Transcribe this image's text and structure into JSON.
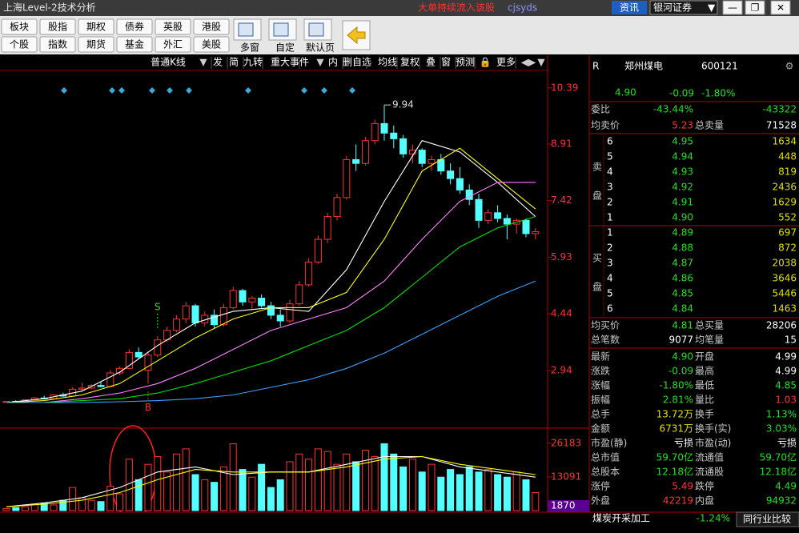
{
  "title_bar": {
    "title": "上海Level-2技术分析",
    "alert": "大单持续流入该股",
    "user": "cjsyds",
    "news": "资讯",
    "broker": "银河证券"
  },
  "toolbar": {
    "row1": [
      "板块",
      "股指",
      "期权",
      "债券",
      "英股",
      "港股"
    ],
    "row2": [
      "个股",
      "指数",
      "期货",
      "基金",
      "外汇",
      "美股"
    ],
    "icons": [
      "多窗",
      "自定",
      "默认页"
    ]
  },
  "chart_toolbar": [
    "普通K线",
    "发",
    "简",
    "九转",
    "重大事件",
    "内",
    "删自选",
    "均线",
    "复权",
    "叠",
    "窗",
    "预测",
    "更多"
  ],
  "chart_data": {
    "type": "candlestick",
    "candles": {
      "open": [
        2.1,
        2.13,
        2.12,
        2.17,
        2.22,
        2.2,
        2.3,
        2.27,
        2.45,
        2.48,
        2.55,
        2.52,
        2.88,
        3.0,
        3.42,
        2.95,
        3.35,
        3.75,
        4.0,
        4.3,
        4.65,
        4.2,
        4.4,
        4.15,
        4.6,
        5.05,
        4.75,
        4.85,
        4.65,
        4.4,
        4.25,
        4.7,
        5.2,
        5.8,
        6.4,
        7.0,
        7.5,
        8.5,
        8.4,
        9.0,
        9.45,
        9.2,
        9.05,
        8.65,
        8.75,
        8.4,
        8.5,
        8.2,
        8.0,
        7.7,
        7.45,
        6.9,
        7.1,
        6.95,
        6.8,
        6.9,
        6.55
      ],
      "high": [
        2.14,
        2.16,
        2.18,
        2.25,
        2.28,
        2.32,
        2.36,
        2.5,
        2.62,
        2.58,
        2.65,
        2.95,
        3.05,
        3.5,
        3.55,
        3.45,
        3.85,
        4.1,
        4.4,
        4.75,
        4.7,
        4.5,
        4.55,
        4.7,
        5.15,
        5.1,
        4.9,
        4.95,
        4.75,
        4.55,
        4.8,
        5.3,
        5.9,
        6.5,
        7.1,
        7.6,
        8.6,
        8.9,
        9.1,
        9.55,
        9.94,
        9.4,
        9.15,
        8.9,
        8.8,
        8.6,
        8.65,
        8.4,
        8.3,
        7.85,
        7.6,
        7.2,
        7.3,
        7.05,
        6.95,
        6.95,
        6.7
      ],
      "low": [
        2.08,
        2.11,
        2.11,
        2.15,
        2.18,
        2.19,
        2.25,
        2.26,
        2.42,
        2.45,
        2.5,
        2.5,
        2.82,
        2.98,
        3.25,
        2.6,
        3.3,
        3.7,
        3.95,
        4.2,
        4.1,
        4.1,
        4.05,
        4.1,
        4.55,
        4.65,
        4.55,
        4.6,
        4.3,
        4.1,
        4.2,
        4.65,
        5.15,
        5.75,
        6.3,
        6.9,
        7.45,
        8.2,
        8.35,
        8.9,
        9.0,
        8.8,
        8.55,
        8.4,
        8.3,
        8.2,
        8.1,
        7.85,
        7.6,
        7.3,
        6.7,
        6.8,
        6.85,
        6.4,
        6.55,
        6.45,
        6.4
      ],
      "close": [
        2.13,
        2.12,
        2.17,
        2.22,
        2.2,
        2.3,
        2.27,
        2.45,
        2.48,
        2.55,
        2.52,
        2.88,
        3.0,
        3.42,
        3.3,
        3.35,
        3.75,
        4.0,
        4.3,
        4.65,
        4.2,
        4.4,
        4.15,
        4.6,
        5.05,
        4.75,
        4.85,
        4.65,
        4.4,
        4.25,
        4.7,
        5.2,
        5.8,
        6.4,
        7.0,
        7.5,
        8.5,
        8.4,
        9.0,
        9.45,
        9.2,
        9.05,
        8.65,
        8.75,
        8.4,
        8.5,
        8.2,
        8.0,
        7.7,
        7.45,
        6.9,
        7.1,
        6.95,
        6.8,
        6.9,
        6.55,
        6.6
      ]
    },
    "up_color": "#ff3232",
    "down_color": "#54ffff",
    "ylim": [
      1.53,
      10.85
    ],
    "yticks": [
      2.94,
      4.44,
      5.93,
      7.42,
      8.91,
      10.39
    ],
    "max_label": 9.94,
    "signals": [
      {
        "label": "S",
        "index": 16
      },
      {
        "label": "B",
        "index": 15
      }
    ],
    "ma_x": [
      0,
      4,
      8,
      12,
      16,
      20,
      24,
      28,
      32,
      36,
      40,
      44,
      48,
      52,
      56
    ],
    "ma": [
      {
        "color": "#ffffff",
        "values": [
          2.1,
          2.2,
          2.4,
          2.9,
          3.6,
          4.2,
          4.5,
          4.6,
          4.5,
          5.6,
          7.4,
          9.0,
          8.7,
          7.9,
          7.0
        ]
      },
      {
        "color": "#ffff00",
        "values": [
          2.1,
          2.15,
          2.3,
          2.6,
          3.2,
          3.8,
          4.3,
          4.6,
          4.6,
          5.0,
          6.4,
          8.2,
          8.8,
          8.0,
          7.2
        ]
      },
      {
        "color": "#ff80ff",
        "values": [
          2.1,
          2.1,
          2.2,
          2.35,
          2.6,
          3.0,
          3.5,
          4.0,
          4.3,
          4.6,
          5.3,
          6.4,
          7.4,
          7.9,
          7.9
        ]
      },
      {
        "color": "#00e000",
        "values": [
          2.1,
          2.1,
          2.15,
          2.2,
          2.35,
          2.6,
          2.9,
          3.2,
          3.6,
          4.0,
          4.6,
          5.4,
          6.2,
          6.7,
          7.0
        ]
      },
      {
        "color": "#3aa0ff",
        "values": [
          2.1,
          2.1,
          2.1,
          2.12,
          2.15,
          2.2,
          2.3,
          2.5,
          2.7,
          3.0,
          3.4,
          3.9,
          4.4,
          4.9,
          5.3
        ]
      }
    ],
    "volume": {
      "values": [
        800,
        1200,
        1500,
        2500,
        3000,
        2200,
        4000,
        9000,
        5000,
        4000,
        3500,
        9500,
        6500,
        20000,
        12000,
        18000,
        21000,
        15000,
        22000,
        24000,
        14000,
        12000,
        11000,
        17000,
        26000,
        16000,
        13000,
        18000,
        9000,
        12000,
        19000,
        22000,
        20000,
        24000,
        23000,
        18000,
        22000,
        19000,
        23500,
        21000,
        26000,
        22000,
        17000,
        20000,
        15000,
        18000,
        13000,
        16000,
        14000,
        17000,
        15000,
        16000,
        14000,
        13000,
        15000,
        12000,
        7000
      ],
      "ylim": [
        0,
        30500
      ],
      "yticks": [
        1870,
        13091,
        26183
      ],
      "ma": [
        {
          "color": "#ffffff",
          "values": [
            1500,
            3000,
            5000,
            9000,
            15000,
            17000,
            14000,
            15000,
            15000,
            18000,
            21000,
            21000,
            17000,
            15000,
            13000
          ]
        },
        {
          "color": "#ffff00",
          "values": [
            1500,
            2500,
            4000,
            7000,
            12000,
            16000,
            15000,
            15000,
            15000,
            17000,
            20000,
            21000,
            18000,
            16000,
            14000
          ]
        }
      ]
    }
  },
  "quote_panel": {
    "flag": "R",
    "name": "郑州煤电",
    "code": "600121",
    "price": "4.90",
    "change": "-0.09",
    "change_pct": "-1.80%",
    "top_rows": [
      [
        "委比",
        "-43.44%",
        "",
        "-43322"
      ],
      [
        "均卖价",
        "5.23",
        "总卖量",
        "71528"
      ]
    ],
    "sell_label": [
      "卖",
      "盘"
    ],
    "sell": [
      [
        "6",
        "4.95",
        "1634"
      ],
      [
        "5",
        "4.94",
        "448"
      ],
      [
        "4",
        "4.93",
        "819"
      ],
      [
        "3",
        "4.92",
        "2436"
      ],
      [
        "2",
        "4.91",
        "1629"
      ],
      [
        "1",
        "4.90",
        "552"
      ]
    ],
    "buy_label": [
      "买",
      "盘"
    ],
    "buy": [
      [
        "1",
        "4.89",
        "697"
      ],
      [
        "2",
        "4.88",
        "872"
      ],
      [
        "3",
        "4.87",
        "2038"
      ],
      [
        "4",
        "4.86",
        "3646"
      ],
      [
        "5",
        "4.85",
        "5446"
      ],
      [
        "6",
        "4.84",
        "1463"
      ]
    ],
    "mid_rows": [
      [
        "均买价",
        "4.81",
        "总买量",
        "28206"
      ],
      [
        "总笔数",
        "9077",
        "均笔量",
        "15"
      ]
    ],
    "stats": [
      [
        "最新",
        "4.90",
        "开盘",
        "4.99"
      ],
      [
        "涨跌",
        "-0.09",
        "最高",
        "4.99"
      ],
      [
        "涨幅",
        "-1.80%",
        "最低",
        "4.85"
      ],
      [
        "振幅",
        "2.81%",
        "量比",
        "1.03"
      ],
      [
        "总手",
        "13.72万",
        "换手",
        "1.13%"
      ],
      [
        "金额",
        "6731万",
        "换手(实)",
        "3.03%"
      ],
      [
        "市盈(静)",
        "亏损",
        "市盈(动)",
        "亏损"
      ],
      [
        "总市值",
        "59.70亿",
        "流通值",
        "59.70亿"
      ],
      [
        "总股本",
        "12.18亿",
        "流通股",
        "12.18亿"
      ],
      [
        "涨停",
        "5.49",
        "跌停",
        "4.49"
      ],
      [
        "外盘",
        "42219",
        "内盘",
        "94932"
      ]
    ]
  },
  "footer": {
    "industry": "煤炭开采加工",
    "industry_change": "-1.24%",
    "compare": "同行业比较"
  }
}
